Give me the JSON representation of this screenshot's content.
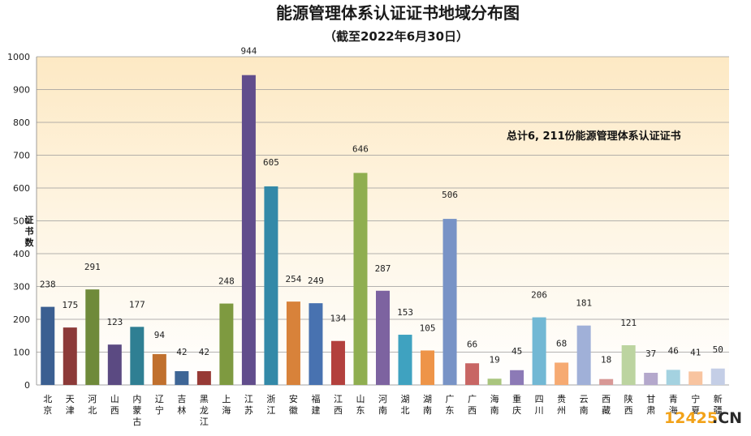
{
  "chart_data": {
    "type": "bar",
    "title": "能源管理体系认证证书地域分布图",
    "subtitle": "（截至2022年6月30日）",
    "ylabel": "证书数",
    "xlabel": "",
    "ylim": [
      0,
      1000
    ],
    "yticks": [
      0,
      100,
      200,
      300,
      400,
      500,
      600,
      700,
      800,
      900,
      1000
    ],
    "grid": true,
    "annotation": "总计6, 211份能源管理体系认证证书",
    "categories": [
      "北京",
      "天津",
      "河北",
      "山西",
      "内蒙古",
      "辽宁",
      "吉林",
      "黑龙江",
      "上海",
      "江苏",
      "浙江",
      "安徽",
      "福建",
      "江西",
      "山东",
      "河南",
      "湖北",
      "湖南",
      "广东",
      "广西",
      "海南",
      "重庆",
      "四川",
      "贵州",
      "云南",
      "西藏",
      "陕西",
      "甘肃",
      "青海",
      "宁夏",
      "新疆"
    ],
    "values": [
      238,
      175,
      291,
      123,
      177,
      94,
      42,
      42,
      248,
      944,
      605,
      254,
      249,
      134,
      646,
      287,
      153,
      105,
      506,
      66,
      19,
      45,
      206,
      68,
      181,
      18,
      121,
      37,
      46,
      41,
      50
    ],
    "colors": [
      "#3b5f91",
      "#8c3a38",
      "#6f8a3a",
      "#5b4a82",
      "#2f7f93",
      "#c0702e",
      "#3e6696",
      "#973a36",
      "#7e9a40",
      "#614d8c",
      "#3389a8",
      "#d8823a",
      "#4872b0",
      "#b3403d",
      "#8fae50",
      "#7d63a0",
      "#3fa2c0",
      "#ee9448",
      "#7893c6",
      "#c86664",
      "#a9c57e",
      "#8c7ab6",
      "#72b8d4",
      "#f6aa72",
      "#a0b0d8",
      "#d89896",
      "#bcd4a0",
      "#b4a8cc",
      "#a4d2e0",
      "#f8c4a0",
      "#c4cee6"
    ],
    "category_label_colors": "#111111"
  },
  "watermark": {
    "num": "12425",
    "suffix": ".CN"
  }
}
